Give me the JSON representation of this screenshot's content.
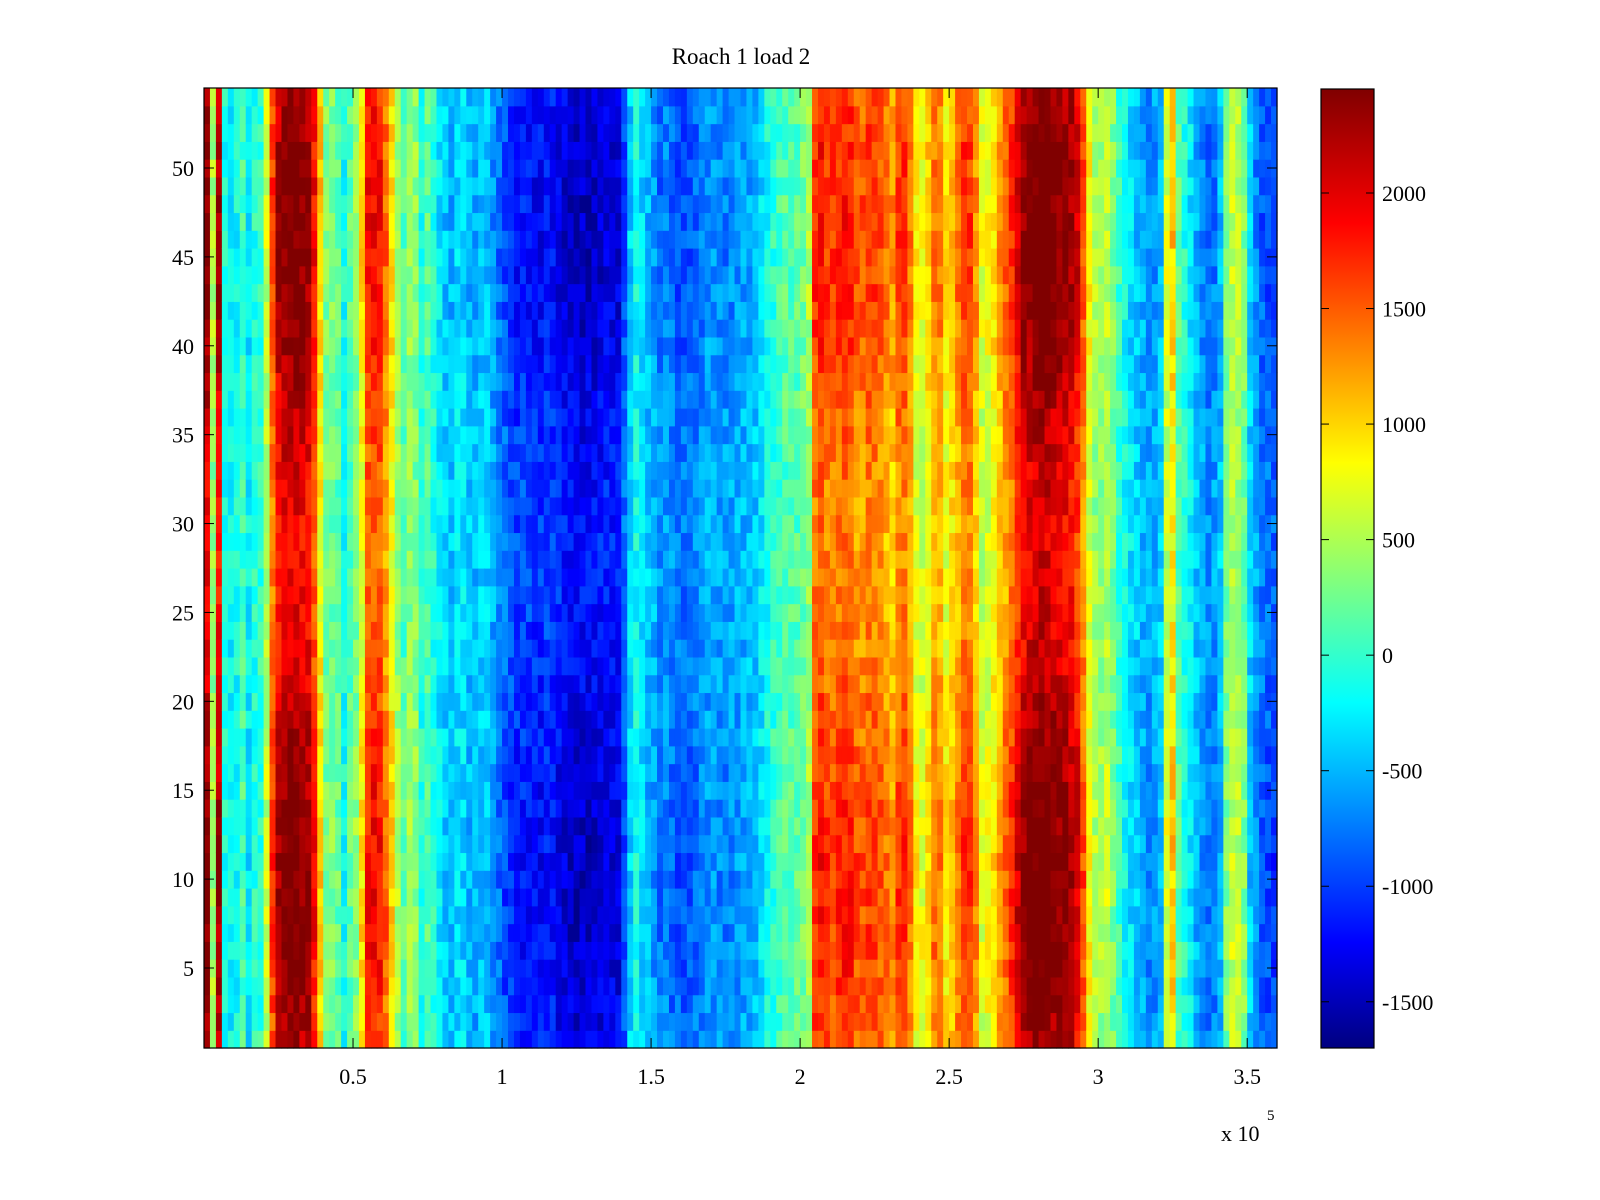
{
  "chart_data": {
    "type": "heatmap",
    "title": "Roach 1 load 2",
    "xlabel": "",
    "ylabel": "",
    "colormap": "jet",
    "x_multiplier_label": {
      "base": "x 10",
      "exponent": "5"
    },
    "xlim": [
      0,
      3.6
    ],
    "ylim": [
      0.5,
      54.5
    ],
    "x_ticks": [
      0.5,
      1,
      1.5,
      2,
      2.5,
      3,
      3.5
    ],
    "x_tick_labels": [
      "0.5",
      "1",
      "1.5",
      "2",
      "2.5",
      "3",
      "3.5"
    ],
    "y_ticks": [
      5,
      10,
      15,
      20,
      25,
      30,
      35,
      40,
      45,
      50
    ],
    "y_tick_labels": [
      "5",
      "10",
      "15",
      "20",
      "25",
      "30",
      "35",
      "40",
      "45",
      "50"
    ],
    "clim": [
      -1700,
      2450
    ],
    "colorbar_ticks": [
      2000,
      1500,
      1000,
      500,
      0,
      -500,
      -1000,
      -1500
    ],
    "colorbar_tick_labels": [
      "2000",
      "1500",
      "1000",
      "500",
      "0",
      "-500",
      "-1000",
      "-1500"
    ],
    "n_rows": 54,
    "column_profile_x": [
      0.0,
      0.01,
      0.02,
      0.03,
      0.04,
      0.05,
      0.06,
      0.08,
      0.1,
      0.12,
      0.15,
      0.18,
      0.2,
      0.22,
      0.24,
      0.26,
      0.28,
      0.3,
      0.33,
      0.36,
      0.39,
      0.42,
      0.44,
      0.46,
      0.49,
      0.52,
      0.55,
      0.58,
      0.6,
      0.62,
      0.64,
      0.67,
      0.7,
      0.73,
      0.75,
      0.78,
      0.8,
      0.83,
      0.86,
      0.9,
      0.94,
      0.98,
      1.02,
      1.05,
      1.08,
      1.12,
      1.16,
      1.2,
      1.25,
      1.3,
      1.35,
      1.4,
      1.42,
      1.44,
      1.46,
      1.48,
      1.5,
      1.52,
      1.55,
      1.6,
      1.65,
      1.7,
      1.75,
      1.8,
      1.85,
      1.9,
      1.95,
      2.0,
      2.03,
      2.05,
      2.07,
      2.1,
      2.13,
      2.16,
      2.2,
      2.24,
      2.28,
      2.31,
      2.34,
      2.37,
      2.4,
      2.43,
      2.46,
      2.49,
      2.52,
      2.55,
      2.58,
      2.61,
      2.64,
      2.67,
      2.7,
      2.72,
      2.74,
      2.78,
      2.82,
      2.86,
      2.9,
      2.94,
      2.97,
      3.0,
      3.03,
      3.06,
      3.1,
      3.14,
      3.18,
      3.22,
      3.24,
      3.26,
      3.3,
      3.34,
      3.38,
      3.42,
      3.44,
      3.46,
      3.48,
      3.5,
      3.54,
      3.6
    ],
    "column_profile_value": [
      1500,
      2200,
      2000,
      500,
      -200,
      2100,
      -300,
      200,
      -500,
      300,
      -200,
      100,
      0,
      1200,
      1900,
      2200,
      2300,
      2300,
      2200,
      2100,
      1000,
      0,
      700,
      -200,
      200,
      500,
      1700,
      1800,
      1600,
      1200,
      700,
      200,
      600,
      0,
      200,
      -100,
      -300,
      -400,
      -200,
      -500,
      -300,
      -600,
      -900,
      -1000,
      -1000,
      -1100,
      -1000,
      -1200,
      -1300,
      -1300,
      -1200,
      -1200,
      -400,
      -200,
      0,
      -500,
      -300,
      -700,
      -600,
      -800,
      -700,
      -500,
      -600,
      -500,
      -400,
      0,
      200,
      200,
      500,
      1600,
      1700,
      1500,
      1600,
      1700,
      1400,
      1600,
      1400,
      1200,
      1700,
      1300,
      600,
      1000,
      1500,
      900,
      1200,
      1600,
      1500,
      700,
      800,
      1200,
      1500,
      1700,
      2100,
      2300,
      2400,
      2200,
      2200,
      1800,
      800,
      400,
      600,
      200,
      -200,
      -400,
      -600,
      -300,
      1700,
      300,
      -100,
      -500,
      -700,
      -300,
      1000,
      200,
      900,
      -200,
      -700,
      -900
    ]
  }
}
